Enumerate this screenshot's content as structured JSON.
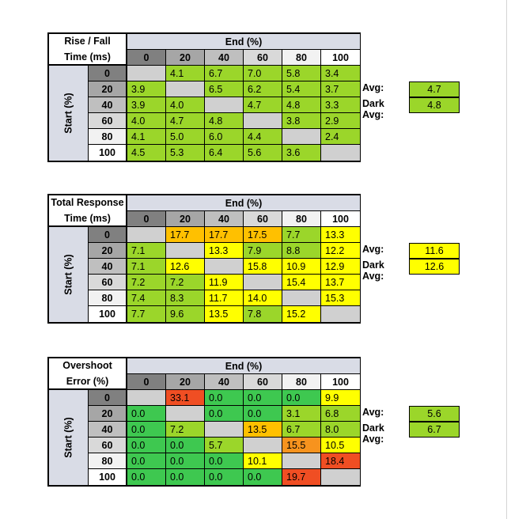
{
  "header_shades": {
    "0": "#808080",
    "20": "#a6a6a6",
    "40": "#bfbfbf",
    "60": "#d9d9d9",
    "80": "#f2f2f2",
    "100": "#ffffff"
  },
  "colors": {
    "green_dark": "#3ec850",
    "green_light": "#9bd62a",
    "yellow": "#ffff00",
    "amber": "#ffc000",
    "orange": "#f7931e",
    "red": "#f04e23",
    "empty": "#d0d0d0"
  },
  "tables": [
    {
      "title_line1": "Rise / Fall",
      "title_line2": "Time (ms)",
      "end_label": "End (%)",
      "start_label": "Start (%)",
      "columns": [
        "0",
        "20",
        "40",
        "60",
        "80",
        "100"
      ],
      "rows": [
        {
          "label": "0",
          "cells": [
            {
              "v": "",
              "c": "empty"
            },
            {
              "v": "4.1",
              "c": "green_light"
            },
            {
              "v": "6.7",
              "c": "green_light"
            },
            {
              "v": "7.0",
              "c": "green_light"
            },
            {
              "v": "5.8",
              "c": "green_light"
            },
            {
              "v": "3.4",
              "c": "green_light"
            }
          ]
        },
        {
          "label": "20",
          "cells": [
            {
              "v": "3.9",
              "c": "green_light"
            },
            {
              "v": "",
              "c": "empty"
            },
            {
              "v": "6.5",
              "c": "green_light"
            },
            {
              "v": "6.2",
              "c": "green_light"
            },
            {
              "v": "5.4",
              "c": "green_light"
            },
            {
              "v": "3.7",
              "c": "green_light"
            }
          ]
        },
        {
          "label": "40",
          "cells": [
            {
              "v": "3.9",
              "c": "green_light"
            },
            {
              "v": "4.0",
              "c": "green_light"
            },
            {
              "v": "",
              "c": "empty"
            },
            {
              "v": "4.7",
              "c": "green_light"
            },
            {
              "v": "4.8",
              "c": "green_light"
            },
            {
              "v": "3.3",
              "c": "green_light"
            }
          ]
        },
        {
          "label": "60",
          "cells": [
            {
              "v": "4.0",
              "c": "green_light"
            },
            {
              "v": "4.7",
              "c": "green_light"
            },
            {
              "v": "4.8",
              "c": "green_light"
            },
            {
              "v": "",
              "c": "empty"
            },
            {
              "v": "3.8",
              "c": "green_light"
            },
            {
              "v": "2.9",
              "c": "green_light"
            }
          ]
        },
        {
          "label": "80",
          "cells": [
            {
              "v": "4.1",
              "c": "green_light"
            },
            {
              "v": "5.0",
              "c": "green_light"
            },
            {
              "v": "6.0",
              "c": "green_light"
            },
            {
              "v": "4.4",
              "c": "green_light"
            },
            {
              "v": "",
              "c": "empty"
            },
            {
              "v": "2.4",
              "c": "green_light"
            }
          ]
        },
        {
          "label": "100",
          "cells": [
            {
              "v": "4.5",
              "c": "green_light"
            },
            {
              "v": "5.3",
              "c": "green_light"
            },
            {
              "v": "6.4",
              "c": "green_light"
            },
            {
              "v": "5.6",
              "c": "green_light"
            },
            {
              "v": "3.6",
              "c": "green_light"
            },
            {
              "v": "",
              "c": "empty"
            }
          ]
        }
      ],
      "avg_label": "Avg:",
      "avg_value": "4.7",
      "avg_color": "green_light",
      "dark_avg_label": "Dark Avg:",
      "dark_avg_value": "4.8",
      "dark_avg_color": "green_light"
    },
    {
      "title_line1": "Total Response",
      "title_line2": "Time (ms)",
      "end_label": "End (%)",
      "start_label": "Start (%)",
      "columns": [
        "0",
        "20",
        "40",
        "60",
        "80",
        "100"
      ],
      "rows": [
        {
          "label": "0",
          "cells": [
            {
              "v": "",
              "c": "empty"
            },
            {
              "v": "17.7",
              "c": "amber"
            },
            {
              "v": "17.7",
              "c": "amber"
            },
            {
              "v": "17.5",
              "c": "amber"
            },
            {
              "v": "7.7",
              "c": "green_light"
            },
            {
              "v": "13.3",
              "c": "yellow"
            }
          ]
        },
        {
          "label": "20",
          "cells": [
            {
              "v": "7.1",
              "c": "green_light"
            },
            {
              "v": "",
              "c": "empty"
            },
            {
              "v": "13.3",
              "c": "yellow"
            },
            {
              "v": "7.9",
              "c": "green_light"
            },
            {
              "v": "8.8",
              "c": "green_light"
            },
            {
              "v": "12.2",
              "c": "yellow"
            }
          ]
        },
        {
          "label": "40",
          "cells": [
            {
              "v": "7.1",
              "c": "green_light"
            },
            {
              "v": "12.6",
              "c": "yellow"
            },
            {
              "v": "",
              "c": "empty"
            },
            {
              "v": "15.8",
              "c": "yellow"
            },
            {
              "v": "10.9",
              "c": "yellow"
            },
            {
              "v": "12.9",
              "c": "yellow"
            }
          ]
        },
        {
          "label": "60",
          "cells": [
            {
              "v": "7.2",
              "c": "green_light"
            },
            {
              "v": "7.2",
              "c": "green_light"
            },
            {
              "v": "11.9",
              "c": "yellow"
            },
            {
              "v": "",
              "c": "empty"
            },
            {
              "v": "15.4",
              "c": "yellow"
            },
            {
              "v": "13.7",
              "c": "yellow"
            }
          ]
        },
        {
          "label": "80",
          "cells": [
            {
              "v": "7.4",
              "c": "green_light"
            },
            {
              "v": "8.3",
              "c": "green_light"
            },
            {
              "v": "11.7",
              "c": "yellow"
            },
            {
              "v": "14.0",
              "c": "yellow"
            },
            {
              "v": "",
              "c": "empty"
            },
            {
              "v": "15.3",
              "c": "yellow"
            }
          ]
        },
        {
          "label": "100",
          "cells": [
            {
              "v": "7.7",
              "c": "green_light"
            },
            {
              "v": "9.6",
              "c": "green_light"
            },
            {
              "v": "13.5",
              "c": "yellow"
            },
            {
              "v": "7.8",
              "c": "green_light"
            },
            {
              "v": "15.2",
              "c": "yellow"
            },
            {
              "v": "",
              "c": "empty"
            }
          ]
        }
      ],
      "avg_label": "Avg:",
      "avg_value": "11.6",
      "avg_color": "yellow",
      "dark_avg_label": "Dark Avg:",
      "dark_avg_value": "12.6",
      "dark_avg_color": "yellow"
    },
    {
      "title_line1": "Overshoot",
      "title_line2": "Error (%)",
      "end_label": "End (%)",
      "start_label": "Start (%)",
      "columns": [
        "0",
        "20",
        "40",
        "60",
        "80",
        "100"
      ],
      "rows": [
        {
          "label": "0",
          "cells": [
            {
              "v": "",
              "c": "empty"
            },
            {
              "v": "33.1",
              "c": "red"
            },
            {
              "v": "0.0",
              "c": "green_dark"
            },
            {
              "v": "0.0",
              "c": "green_dark"
            },
            {
              "v": "0.0",
              "c": "green_dark"
            },
            {
              "v": "9.9",
              "c": "yellow"
            }
          ]
        },
        {
          "label": "20",
          "cells": [
            {
              "v": "0.0",
              "c": "green_dark"
            },
            {
              "v": "",
              "c": "empty"
            },
            {
              "v": "0.0",
              "c": "green_dark"
            },
            {
              "v": "0.0",
              "c": "green_dark"
            },
            {
              "v": "3.1",
              "c": "green_light"
            },
            {
              "v": "6.8",
              "c": "green_light"
            }
          ]
        },
        {
          "label": "40",
          "cells": [
            {
              "v": "0.0",
              "c": "green_dark"
            },
            {
              "v": "7.2",
              "c": "green_light"
            },
            {
              "v": "",
              "c": "empty"
            },
            {
              "v": "13.5",
              "c": "amber"
            },
            {
              "v": "6.7",
              "c": "green_light"
            },
            {
              "v": "8.0",
              "c": "green_light"
            }
          ]
        },
        {
          "label": "60",
          "cells": [
            {
              "v": "0.0",
              "c": "green_dark"
            },
            {
              "v": "0.0",
              "c": "green_dark"
            },
            {
              "v": "5.7",
              "c": "green_light"
            },
            {
              "v": "",
              "c": "empty"
            },
            {
              "v": "15.5",
              "c": "orange"
            },
            {
              "v": "10.5",
              "c": "yellow"
            }
          ]
        },
        {
          "label": "80",
          "cells": [
            {
              "v": "0.0",
              "c": "green_dark"
            },
            {
              "v": "0.0",
              "c": "green_dark"
            },
            {
              "v": "0.0",
              "c": "green_dark"
            },
            {
              "v": "10.1",
              "c": "yellow"
            },
            {
              "v": "",
              "c": "empty"
            },
            {
              "v": "18.4",
              "c": "red"
            }
          ]
        },
        {
          "label": "100",
          "cells": [
            {
              "v": "0.0",
              "c": "green_dark"
            },
            {
              "v": "0.0",
              "c": "green_dark"
            },
            {
              "v": "0.0",
              "c": "green_dark"
            },
            {
              "v": "0.0",
              "c": "green_dark"
            },
            {
              "v": "19.7",
              "c": "red"
            },
            {
              "v": "",
              "c": "empty"
            }
          ]
        }
      ],
      "avg_label": "Avg:",
      "avg_value": "5.6",
      "avg_color": "green_light",
      "dark_avg_label": "Dark Avg:",
      "dark_avg_value": "6.7",
      "dark_avg_color": "green_light"
    }
  ]
}
